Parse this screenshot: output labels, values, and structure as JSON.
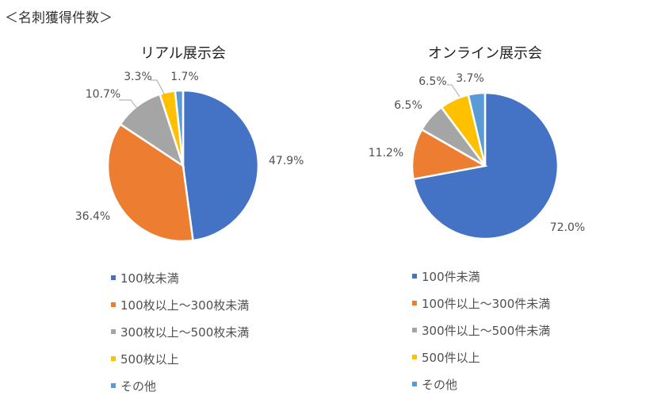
{
  "heading": "＜名刺獲得件数＞",
  "chart_data": [
    {
      "type": "pie",
      "title": "リアル展示会",
      "categories": [
        "100枚未満",
        "100枚以上～300枚未満",
        "300枚以上～500枚未満",
        "500枚以上",
        "その他"
      ],
      "values": [
        47.9,
        36.4,
        10.7,
        3.3,
        1.7
      ],
      "labels": [
        "47.9%",
        "36.4%",
        "10.7%",
        "3.3%",
        "1.7%"
      ],
      "colors": [
        "#4472C4",
        "#ED7D31",
        "#A5A5A5",
        "#FFC000",
        "#5B9BD5"
      ],
      "legend_position": "bottom"
    },
    {
      "type": "pie",
      "title": "オンライン展示会",
      "categories": [
        "100件未満",
        "100件以上～300件未満",
        "300件以上～500件未満",
        "500件以上",
        "その他"
      ],
      "values": [
        72.0,
        11.2,
        6.5,
        6.5,
        3.7
      ],
      "labels": [
        "72.0%",
        "11.2%",
        "6.5%",
        "6.5%",
        "3.7%"
      ],
      "colors": [
        "#4472C4",
        "#ED7D31",
        "#A5A5A5",
        "#FFC000",
        "#5B9BD5"
      ],
      "legend_position": "bottom"
    }
  ]
}
